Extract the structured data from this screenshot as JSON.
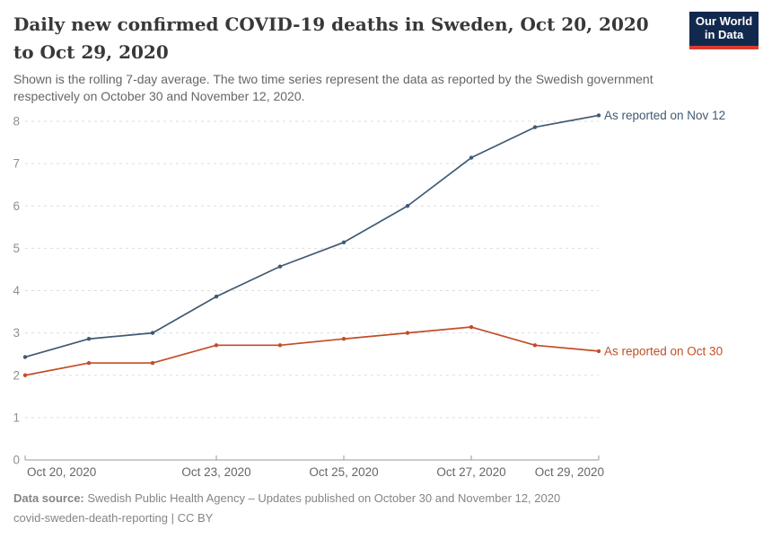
{
  "header": {
    "title": "Daily new confirmed COVID-19 deaths in Sweden, Oct 20, 2020 to Oct 29, 2020",
    "subtitle": "Shown is the rolling 7-day average. The two time series represent the data as reported by the Swedish government respectively on October 30 and November 12, 2020.",
    "logo": {
      "line1": "Our World",
      "line2": "in Data",
      "bg_color": "#12294E",
      "accent_color": "#DB3A2F"
    }
  },
  "chart_data": {
    "type": "line",
    "title": "Daily new confirmed COVID-19 deaths in Sweden",
    "x": [
      "Oct 20, 2020",
      "Oct 21, 2020",
      "Oct 22, 2020",
      "Oct 23, 2020",
      "Oct 24, 2020",
      "Oct 25, 2020",
      "Oct 26, 2020",
      "Oct 27, 2020",
      "Oct 28, 2020",
      "Oct 29, 2020"
    ],
    "series": [
      {
        "name": "As reported on Nov 12",
        "color": "#405A73",
        "values": [
          2.43,
          2.86,
          3.0,
          3.86,
          4.57,
          5.14,
          6.0,
          7.14,
          7.86,
          8.14
        ]
      },
      {
        "name": "As reported on Oct 30",
        "color": "#C24E27",
        "values": [
          2.0,
          2.29,
          2.29,
          2.71,
          2.71,
          2.86,
          3.0,
          3.14,
          2.71,
          2.57
        ]
      }
    ],
    "ylim": [
      0,
      8
    ],
    "yticks": [
      0,
      1,
      2,
      3,
      4,
      5,
      6,
      7,
      8
    ],
    "xtick_labels": [
      "Oct 20, 2020",
      "Oct 23, 2020",
      "Oct 25, 2020",
      "Oct 27, 2020",
      "Oct 29, 2020"
    ],
    "xtick_indices": [
      0,
      3,
      5,
      7,
      9
    ],
    "grid": true,
    "grid_color": "#dddddd",
    "axis_color": "#999999",
    "ytick_label_color": "#8f8f8f",
    "xtick_label_color": "#666666",
    "legend_position": "end-of-line-labels"
  },
  "footer": {
    "datasource_label": "Data source:",
    "datasource_text": " Swedish Public Health Agency – Updates published on October 30 and November 12, 2020",
    "line2": "covid-sweden-death-reporting | CC BY"
  }
}
